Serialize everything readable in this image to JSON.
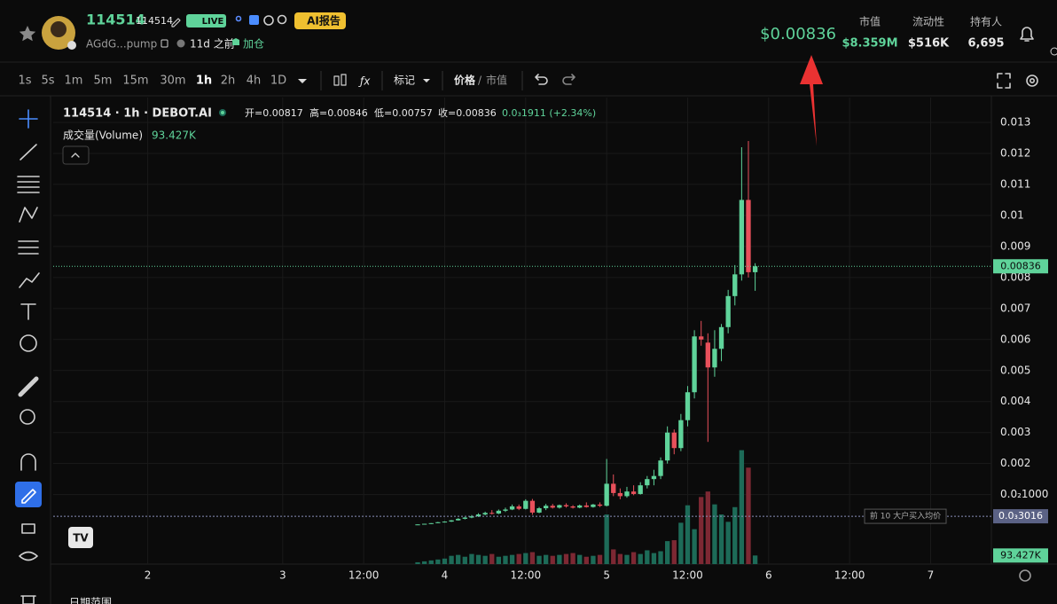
{
  "header": {
    "token_name": "114514",
    "ticker": "114514",
    "live": "LIVE",
    "ai_report": "AI报告",
    "address": "AGdG...pump",
    "age": "11d 之前",
    "add_position": "加仓",
    "price": "$0.00836",
    "stats": [
      {
        "label": "市值",
        "value": "$8.359M"
      },
      {
        "label": "流动性",
        "value": "$516K"
      },
      {
        "label": "持有人",
        "value": "6,695"
      }
    ]
  },
  "toolbar": {
    "intervals": [
      {
        "label": "1s"
      },
      {
        "label": "5s"
      },
      {
        "label": "1m"
      },
      {
        "label": "5m"
      },
      {
        "label": "15m"
      },
      {
        "label": "30m"
      },
      {
        "label": "1h",
        "active": true
      },
      {
        "label": "2h"
      },
      {
        "label": "4h"
      },
      {
        "label": "1D"
      }
    ],
    "marks": "标记",
    "price": "价格",
    "separator": "/",
    "market_cap": "市值"
  },
  "chart_data": {
    "type": "candlestick",
    "title": "114514 · 1h · DEBOT.AI",
    "ohlc_legend": [
      "开=0.00817",
      "高=0.00846",
      "低=0.00757",
      "收=0.00836"
    ],
    "change": "0.0₃1911 (+2.34%)",
    "volume_title": "成交量(Volume)",
    "volume_label": "93.427K",
    "x": [
      44,
      45,
      46,
      47,
      48,
      49,
      50,
      51,
      52,
      53,
      54,
      55,
      56,
      57,
      58,
      59,
      60,
      61,
      62,
      63,
      64,
      65,
      66,
      67,
      68,
      69,
      70,
      71,
      72,
      73,
      74,
      75,
      76,
      77,
      78,
      79,
      80,
      81,
      82,
      83,
      84,
      85,
      86,
      87,
      88,
      89,
      90,
      91,
      92,
      93,
      94
    ],
    "open": [
      3e-05,
      4e-05,
      6e-05,
      8e-05,
      0.00011,
      0.00013,
      0.00017,
      0.00022,
      0.00026,
      0.0003,
      0.00036,
      0.00041,
      0.00039,
      0.00048,
      0.00052,
      0.00062,
      0.00054,
      0.0008,
      0.00042,
      0.00056,
      0.00064,
      0.00058,
      0.00066,
      0.00062,
      0.00058,
      0.00065,
      0.0006,
      0.00068,
      0.00064,
      0.00135,
      0.00105,
      0.00095,
      0.0011,
      0.00102,
      0.0013,
      0.0015,
      0.0016,
      0.0021,
      0.003,
      0.0025,
      0.0034,
      0.0043,
      0.0061,
      0.0059,
      0.0051,
      0.0057,
      0.0064,
      0.0074,
      0.0081,
      0.0105,
      0.00817
    ],
    "high": [
      4e-05,
      6e-05,
      8e-05,
      0.00012,
      0.00014,
      0.00018,
      0.00024,
      0.00028,
      0.00034,
      0.0004,
      0.00045,
      0.0005,
      0.00052,
      0.00058,
      0.00068,
      0.00068,
      0.00085,
      0.00086,
      0.0006,
      0.0007,
      0.0007,
      0.00068,
      0.00072,
      0.00066,
      0.00068,
      0.00075,
      0.0007,
      0.00075,
      0.00215,
      0.00165,
      0.0012,
      0.00125,
      0.0013,
      0.0014,
      0.0016,
      0.0018,
      0.0022,
      0.0032,
      0.0031,
      0.0036,
      0.0045,
      0.0063,
      0.0066,
      0.0062,
      0.0063,
      0.0065,
      0.0076,
      0.0084,
      0.0122,
      0.0124,
      0.00846
    ],
    "low": [
      3e-05,
      4e-05,
      5e-05,
      8e-05,
      0.0001,
      0.00012,
      0.00016,
      0.0002,
      0.00024,
      0.00028,
      0.00033,
      0.00036,
      0.00037,
      0.00044,
      0.0005,
      0.0005,
      0.00052,
      0.00035,
      0.0004,
      0.0005,
      0.00055,
      0.00055,
      0.00058,
      0.00055,
      0.00056,
      0.00058,
      0.00058,
      0.0006,
      0.00062,
      0.00095,
      0.00085,
      0.0009,
      0.00098,
      0.001,
      0.0012,
      0.0013,
      0.0015,
      0.002,
      0.0023,
      0.0024,
      0.0032,
      0.0041,
      0.0058,
      0.0027,
      0.0048,
      0.0053,
      0.0062,
      0.0071,
      0.0079,
      0.008,
      0.00757
    ],
    "close": [
      4e-05,
      6e-05,
      8e-05,
      0.00011,
      0.00013,
      0.00017,
      0.00022,
      0.00026,
      0.0003,
      0.00036,
      0.00041,
      0.00039,
      0.00048,
      0.00052,
      0.00062,
      0.00054,
      0.0008,
      0.00042,
      0.00056,
      0.00064,
      0.00058,
      0.00066,
      0.00062,
      0.00058,
      0.00065,
      0.0006,
      0.00068,
      0.00064,
      0.00135,
      0.00105,
      0.00095,
      0.0011,
      0.00102,
      0.0013,
      0.0015,
      0.0016,
      0.0021,
      0.003,
      0.0025,
      0.0034,
      0.0043,
      0.0061,
      0.006,
      0.0051,
      0.0057,
      0.0064,
      0.0074,
      0.0081,
      0.0105,
      0.00817,
      0.00836
    ],
    "volume": [
      20,
      30,
      40,
      50,
      60,
      90,
      100,
      80,
      110,
      100,
      90,
      110,
      80,
      90,
      100,
      110,
      120,
      130,
      90,
      100,
      90,
      100,
      110,
      120,
      100,
      80,
      90,
      100,
      540,
      160,
      110,
      100,
      130,
      110,
      150,
      120,
      140,
      250,
      260,
      450,
      640,
      380,
      730,
      790,
      650,
      540,
      460,
      620,
      1240,
      1050,
      93.427
    ],
    "up_color": "#5fd39a",
    "down_color": "#e8505b",
    "volume_up_color": "#1d6b58",
    "volume_down_color": "#7d2833",
    "xlim": [
      -10,
      129
    ],
    "xticks": [
      {
        "value": 4,
        "label": "2"
      },
      {
        "value": 24,
        "label": "3"
      },
      {
        "value": 36,
        "label": "12:00"
      },
      {
        "value": 48,
        "label": "4"
      },
      {
        "value": 60,
        "label": "12:00"
      },
      {
        "value": 72,
        "label": "5"
      },
      {
        "value": 84,
        "label": "12:00"
      },
      {
        "value": 96,
        "label": "6"
      },
      {
        "value": 108,
        "label": "12:00"
      },
      {
        "value": 120,
        "label": "7"
      }
    ],
    "ylim": [
      -0.00124,
      0.0138
    ],
    "yticks": [
      0.013,
      0.012,
      0.011,
      0.01,
      0.009,
      0.008,
      0.007,
      0.006,
      0.005,
      0.004,
      0.003,
      0.002,
      {
        "value": 0.001,
        "label": "0.0₂1000"
      }
    ],
    "volume_ylim": [
      0,
      4200
    ],
    "grid": true,
    "buyer_average": {
      "label": "前 10 大户买入均价",
      "value": 0.0003016,
      "value_label": "0.0₃3016"
    }
  },
  "footer": {
    "date_range": "日期范围"
  }
}
